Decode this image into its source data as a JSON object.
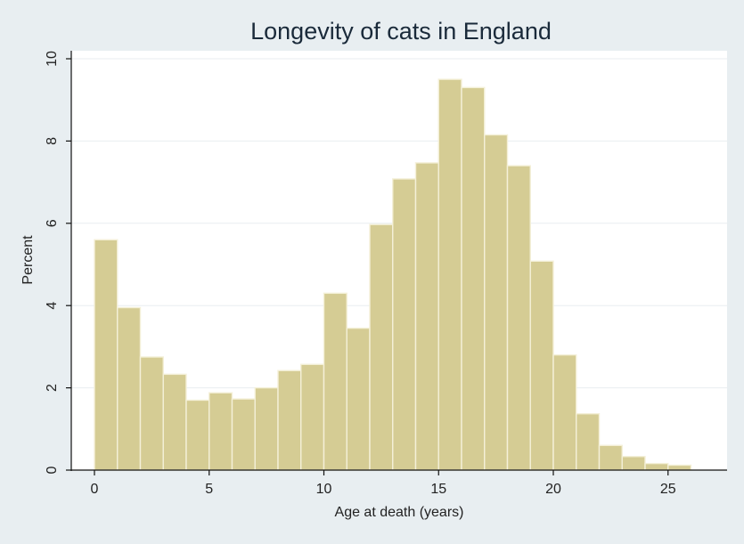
{
  "chart_data": {
    "type": "bar",
    "title": "Longevity of cats in England",
    "xlabel": "Age at death (years)",
    "ylabel": "Percent",
    "bin_width": 1,
    "bins": [
      {
        "x": 0,
        "value": 5.6
      },
      {
        "x": 1,
        "value": 3.95
      },
      {
        "x": 2,
        "value": 2.75
      },
      {
        "x": 3,
        "value": 2.33
      },
      {
        "x": 4,
        "value": 1.7
      },
      {
        "x": 5,
        "value": 1.88
      },
      {
        "x": 6,
        "value": 1.73
      },
      {
        "x": 7,
        "value": 2.0
      },
      {
        "x": 8,
        "value": 2.42
      },
      {
        "x": 9,
        "value": 2.57
      },
      {
        "x": 10,
        "value": 4.3
      },
      {
        "x": 11,
        "value": 3.45
      },
      {
        "x": 12,
        "value": 5.97
      },
      {
        "x": 13,
        "value": 7.08
      },
      {
        "x": 14,
        "value": 7.47
      },
      {
        "x": 15,
        "value": 9.5
      },
      {
        "x": 16,
        "value": 9.3
      },
      {
        "x": 17,
        "value": 8.15
      },
      {
        "x": 18,
        "value": 7.4
      },
      {
        "x": 19,
        "value": 5.08
      },
      {
        "x": 20,
        "value": 2.8
      },
      {
        "x": 21,
        "value": 1.37
      },
      {
        "x": 22,
        "value": 0.6
      },
      {
        "x": 23,
        "value": 0.33
      },
      {
        "x": 24,
        "value": 0.16
      },
      {
        "x": 25,
        "value": 0.12
      }
    ],
    "xlim": [
      -1,
      27.5
    ],
    "ylim": [
      0,
      10
    ],
    "xticks": [
      0,
      5,
      10,
      15,
      20,
      25
    ],
    "yticks": [
      0,
      2,
      4,
      6,
      8,
      10
    ],
    "grid": true,
    "legend": "none"
  },
  "colors": {
    "background": "#e8eef1",
    "plot_area": "#ffffff",
    "bar_fill": "#d5cc94",
    "bar_edge": "#f4f0d8"
  }
}
